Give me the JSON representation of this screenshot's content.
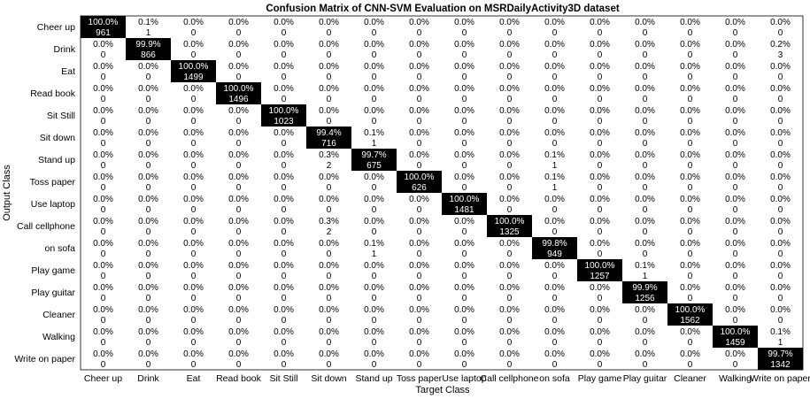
{
  "chart_data": {
    "type": "heatmap",
    "title": "Confusion Matrix of CNN-SVM Evaluation on MSRDailyActivity3D dataset",
    "xlabel": "Target Class",
    "ylabel": "Output Class",
    "output_classes": [
      "Cheer up",
      "Drink",
      "Eat",
      "Read book",
      "Sit Still",
      "Sit down",
      "Stand up",
      "Toss paper",
      "Use laptop",
      "Call cellphone",
      "on sofa",
      "Play game",
      "Play guitar",
      "Cleaner",
      "Walking",
      "Write on paper"
    ],
    "target_classes": [
      "Cheer up",
      "Drink",
      "Eat",
      "Read book",
      "Sit Still",
      "Sit down",
      "Stand up",
      "Toss paper",
      "Use laptop",
      "Call cellphone",
      "on sofa",
      "Play game",
      "Play guitar",
      "Cleaner",
      "Walking",
      "Write on paper"
    ],
    "colors": {
      "diagonal_fill": "#000000",
      "diagonal_text": "#ffffff",
      "off_diagonal_text": "#000000",
      "background": "#ffffff"
    },
    "cells": [
      [
        [
          "100.0%",
          "961"
        ],
        [
          "0.1%",
          "1"
        ],
        [
          "0.0%",
          "0"
        ],
        [
          "0.0%",
          "0"
        ],
        [
          "0.0%",
          "0"
        ],
        [
          "0.0%",
          "0"
        ],
        [
          "0.0%",
          "0"
        ],
        [
          "0.0%",
          "0"
        ],
        [
          "0.0%",
          "0"
        ],
        [
          "0.0%",
          "0"
        ],
        [
          "0.0%",
          "0"
        ],
        [
          "0.0%",
          "0"
        ],
        [
          "0.0%",
          "0"
        ],
        [
          "0.0%",
          "0"
        ],
        [
          "0.0%",
          "0"
        ],
        [
          "0.0%",
          "0"
        ]
      ],
      [
        [
          "0.0%",
          "0"
        ],
        [
          "99.9%",
          "866"
        ],
        [
          "0.0%",
          "0"
        ],
        [
          "0.0%",
          "0"
        ],
        [
          "0.0%",
          "0"
        ],
        [
          "0.0%",
          "0"
        ],
        [
          "0.0%",
          "0"
        ],
        [
          "0.0%",
          "0"
        ],
        [
          "0.0%",
          "0"
        ],
        [
          "0.0%",
          "0"
        ],
        [
          "0.0%",
          "0"
        ],
        [
          "0.0%",
          "0"
        ],
        [
          "0.0%",
          "0"
        ],
        [
          "0.0%",
          "0"
        ],
        [
          "0.0%",
          "0"
        ],
        [
          "0.2%",
          "3"
        ]
      ],
      [
        [
          "0.0%",
          "0"
        ],
        [
          "0.0%",
          "0"
        ],
        [
          "100.0%",
          "1499"
        ],
        [
          "0.0%",
          "0"
        ],
        [
          "0.0%",
          "0"
        ],
        [
          "0.0%",
          "0"
        ],
        [
          "0.0%",
          "0"
        ],
        [
          "0.0%",
          "0"
        ],
        [
          "0.0%",
          "0"
        ],
        [
          "0.0%",
          "0"
        ],
        [
          "0.0%",
          "0"
        ],
        [
          "0.0%",
          "0"
        ],
        [
          "0.0%",
          "0"
        ],
        [
          "0.0%",
          "0"
        ],
        [
          "0.0%",
          "0"
        ],
        [
          "0.0%",
          "0"
        ]
      ],
      [
        [
          "0.0%",
          "0"
        ],
        [
          "0.0%",
          "0"
        ],
        [
          "0.0%",
          "0"
        ],
        [
          "100.0%",
          "1496"
        ],
        [
          "0.0%",
          "0"
        ],
        [
          "0.0%",
          "0"
        ],
        [
          "0.0%",
          "0"
        ],
        [
          "0.0%",
          "0"
        ],
        [
          "0.0%",
          "0"
        ],
        [
          "0.0%",
          "0"
        ],
        [
          "0.0%",
          "0"
        ],
        [
          "0.0%",
          "0"
        ],
        [
          "0.0%",
          "0"
        ],
        [
          "0.0%",
          "0"
        ],
        [
          "0.0%",
          "0"
        ],
        [
          "0.0%",
          "0"
        ]
      ],
      [
        [
          "0.0%",
          "0"
        ],
        [
          "0.0%",
          "0"
        ],
        [
          "0.0%",
          "0"
        ],
        [
          "0.0%",
          "0"
        ],
        [
          "100.0%",
          "1023"
        ],
        [
          "0.0%",
          "0"
        ],
        [
          "0.0%",
          "0"
        ],
        [
          "0.0%",
          "0"
        ],
        [
          "0.0%",
          "0"
        ],
        [
          "0.0%",
          "0"
        ],
        [
          "0.0%",
          "0"
        ],
        [
          "0.0%",
          "0"
        ],
        [
          "0.0%",
          "0"
        ],
        [
          "0.0%",
          "0"
        ],
        [
          "0.0%",
          "0"
        ],
        [
          "0.0%",
          "0"
        ]
      ],
      [
        [
          "0.0%",
          "0"
        ],
        [
          "0.0%",
          "0"
        ],
        [
          "0.0%",
          "0"
        ],
        [
          "0.0%",
          "0"
        ],
        [
          "0.0%",
          "0"
        ],
        [
          "99.4%",
          "716"
        ],
        [
          "0.1%",
          "1"
        ],
        [
          "0.0%",
          "0"
        ],
        [
          "0.0%",
          "0"
        ],
        [
          "0.0%",
          "0"
        ],
        [
          "0.0%",
          "0"
        ],
        [
          "0.0%",
          "0"
        ],
        [
          "0.0%",
          "0"
        ],
        [
          "0.0%",
          "0"
        ],
        [
          "0.0%",
          "0"
        ],
        [
          "0.0%",
          "0"
        ]
      ],
      [
        [
          "0.0%",
          "0"
        ],
        [
          "0.0%",
          "0"
        ],
        [
          "0.0%",
          "0"
        ],
        [
          "0.0%",
          "0"
        ],
        [
          "0.0%",
          "0"
        ],
        [
          "0.3%",
          "2"
        ],
        [
          "99.7%",
          "675"
        ],
        [
          "0.0%",
          "0"
        ],
        [
          "0.0%",
          "0"
        ],
        [
          "0.0%",
          "0"
        ],
        [
          "0.1%",
          "1"
        ],
        [
          "0.0%",
          "0"
        ],
        [
          "0.0%",
          "0"
        ],
        [
          "0.0%",
          "0"
        ],
        [
          "0.0%",
          "0"
        ],
        [
          "0.0%",
          "0"
        ]
      ],
      [
        [
          "0.0%",
          "0"
        ],
        [
          "0.0%",
          "0"
        ],
        [
          "0.0%",
          "0"
        ],
        [
          "0.0%",
          "0"
        ],
        [
          "0.0%",
          "0"
        ],
        [
          "0.0%",
          "0"
        ],
        [
          "0.0%",
          "0"
        ],
        [
          "100.0%",
          "626"
        ],
        [
          "0.0%",
          "0"
        ],
        [
          "0.0%",
          "0"
        ],
        [
          "0.1%",
          "1"
        ],
        [
          "0.0%",
          "0"
        ],
        [
          "0.0%",
          "0"
        ],
        [
          "0.0%",
          "0"
        ],
        [
          "0.0%",
          "0"
        ],
        [
          "0.0%",
          "0"
        ]
      ],
      [
        [
          "0.0%",
          "0"
        ],
        [
          "0.0%",
          "0"
        ],
        [
          "0.0%",
          "0"
        ],
        [
          "0.0%",
          "0"
        ],
        [
          "0.0%",
          "0"
        ],
        [
          "0.0%",
          "0"
        ],
        [
          "0.0%",
          "0"
        ],
        [
          "0.0%",
          "0"
        ],
        [
          "100.0%",
          "1481"
        ],
        [
          "0.0%",
          "0"
        ],
        [
          "0.0%",
          "0"
        ],
        [
          "0.0%",
          "0"
        ],
        [
          "0.0%",
          "0"
        ],
        [
          "0.0%",
          "0"
        ],
        [
          "0.0%",
          "0"
        ],
        [
          "0.0%",
          "0"
        ]
      ],
      [
        [
          "0.0%",
          "0"
        ],
        [
          "0.0%",
          "0"
        ],
        [
          "0.0%",
          "0"
        ],
        [
          "0.0%",
          "0"
        ],
        [
          "0.0%",
          "0"
        ],
        [
          "0.3%",
          "2"
        ],
        [
          "0.0%",
          "0"
        ],
        [
          "0.0%",
          "0"
        ],
        [
          "0.0%",
          "0"
        ],
        [
          "100.0%",
          "1325"
        ],
        [
          "0.0%",
          "0"
        ],
        [
          "0.0%",
          "0"
        ],
        [
          "0.0%",
          "0"
        ],
        [
          "0.0%",
          "0"
        ],
        [
          "0.0%",
          "0"
        ],
        [
          "0.0%",
          "0"
        ]
      ],
      [
        [
          "0.0%",
          "0"
        ],
        [
          "0.0%",
          "0"
        ],
        [
          "0.0%",
          "0"
        ],
        [
          "0.0%",
          "0"
        ],
        [
          "0.0%",
          "0"
        ],
        [
          "0.0%",
          "0"
        ],
        [
          "0.1%",
          "1"
        ],
        [
          "0.0%",
          "0"
        ],
        [
          "0.0%",
          "0"
        ],
        [
          "0.0%",
          "0"
        ],
        [
          "99.8%",
          "949"
        ],
        [
          "0.0%",
          "0"
        ],
        [
          "0.0%",
          "0"
        ],
        [
          "0.0%",
          "0"
        ],
        [
          "0.0%",
          "0"
        ],
        [
          "0.0%",
          "0"
        ]
      ],
      [
        [
          "0.0%",
          "0"
        ],
        [
          "0.0%",
          "0"
        ],
        [
          "0.0%",
          "0"
        ],
        [
          "0.0%",
          "0"
        ],
        [
          "0.0%",
          "0"
        ],
        [
          "0.0%",
          "0"
        ],
        [
          "0.0%",
          "0"
        ],
        [
          "0.0%",
          "0"
        ],
        [
          "0.0%",
          "0"
        ],
        [
          "0.0%",
          "0"
        ],
        [
          "0.0%",
          "0"
        ],
        [
          "100.0%",
          "1257"
        ],
        [
          "0.1%",
          "1"
        ],
        [
          "0.0%",
          "0"
        ],
        [
          "0.0%",
          "0"
        ],
        [
          "0.0%",
          "0"
        ]
      ],
      [
        [
          "0.0%",
          "0"
        ],
        [
          "0.0%",
          "0"
        ],
        [
          "0.0%",
          "0"
        ],
        [
          "0.0%",
          "0"
        ],
        [
          "0.0%",
          "0"
        ],
        [
          "0.0%",
          "0"
        ],
        [
          "0.0%",
          "0"
        ],
        [
          "0.0%",
          "0"
        ],
        [
          "0.0%",
          "0"
        ],
        [
          "0.0%",
          "0"
        ],
        [
          "0.0%",
          "0"
        ],
        [
          "0.0%",
          "0"
        ],
        [
          "99.9%",
          "1256"
        ],
        [
          "0.0%",
          "0"
        ],
        [
          "0.0%",
          "0"
        ],
        [
          "0.0%",
          "0"
        ]
      ],
      [
        [
          "0.0%",
          "0"
        ],
        [
          "0.0%",
          "0"
        ],
        [
          "0.0%",
          "0"
        ],
        [
          "0.0%",
          "0"
        ],
        [
          "0.0%",
          "0"
        ],
        [
          "0.0%",
          "0"
        ],
        [
          "0.0%",
          "0"
        ],
        [
          "0.0%",
          "0"
        ],
        [
          "0.0%",
          "0"
        ],
        [
          "0.0%",
          "0"
        ],
        [
          "0.0%",
          "0"
        ],
        [
          "0.0%",
          "0"
        ],
        [
          "0.0%",
          "0"
        ],
        [
          "100.0%",
          "1562"
        ],
        [
          "0.0%",
          "0"
        ],
        [
          "0.0%",
          "0"
        ]
      ],
      [
        [
          "0.0%",
          "0"
        ],
        [
          "0.0%",
          "0"
        ],
        [
          "0.0%",
          "0"
        ],
        [
          "0.0%",
          "0"
        ],
        [
          "0.0%",
          "0"
        ],
        [
          "0.0%",
          "0"
        ],
        [
          "0.0%",
          "0"
        ],
        [
          "0.0%",
          "0"
        ],
        [
          "0.0%",
          "0"
        ],
        [
          "0.0%",
          "0"
        ],
        [
          "0.0%",
          "0"
        ],
        [
          "0.0%",
          "0"
        ],
        [
          "0.0%",
          "0"
        ],
        [
          "0.0%",
          "0"
        ],
        [
          "100.0%",
          "1459"
        ],
        [
          "0.1%",
          "1"
        ]
      ],
      [
        [
          "0.0%",
          "0"
        ],
        [
          "0.0%",
          "0"
        ],
        [
          "0.0%",
          "0"
        ],
        [
          "0.0%",
          "0"
        ],
        [
          "0.0%",
          "0"
        ],
        [
          "0.0%",
          "0"
        ],
        [
          "0.0%",
          "0"
        ],
        [
          "0.0%",
          "0"
        ],
        [
          "0.0%",
          "0"
        ],
        [
          "0.0%",
          "0"
        ],
        [
          "0.0%",
          "0"
        ],
        [
          "0.0%",
          "0"
        ],
        [
          "0.0%",
          "0"
        ],
        [
          "0.0%",
          "0"
        ],
        [
          "0.0%",
          "0"
        ],
        [
          "99.7%",
          "1342"
        ]
      ]
    ]
  }
}
